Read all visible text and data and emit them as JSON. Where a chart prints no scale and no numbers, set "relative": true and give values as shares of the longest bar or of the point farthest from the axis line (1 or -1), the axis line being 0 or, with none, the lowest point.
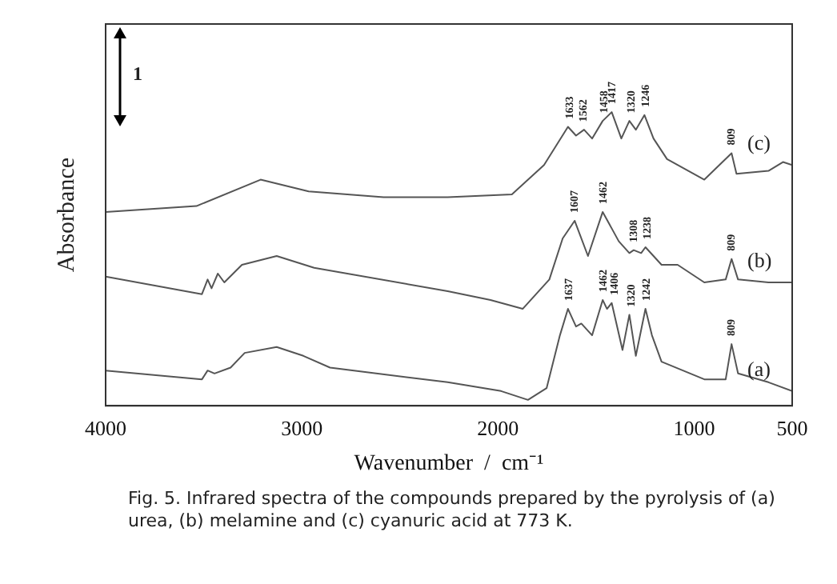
{
  "chart_data": {
    "type": "line",
    "relative": true,
    "xlabel": "Wavenumber  /  cm⁻¹",
    "ylabel": "Absorbance",
    "xlim": [
      4000,
      500
    ],
    "xticks": [
      4000,
      3000,
      2000,
      1000,
      500
    ],
    "grid": false,
    "legend": false,
    "marker": "none",
    "line_style": "solid",
    "tick_labels": "x",
    "series": [
      {
        "name": "(c)",
        "color": "#555555",
        "x": [
          4000,
          3537,
          3210,
          2965,
          2583,
          2256,
          1929,
          1765,
          1643,
          1602,
          1561,
          1520,
          1466,
          1420,
          1371,
          1330,
          1297,
          1253,
          1207,
          1138,
          948,
          809,
          784,
          621,
          547,
          500
        ],
        "values": [
          0.66,
          0.68,
          0.77,
          0.73,
          0.71,
          0.71,
          0.72,
          0.82,
          0.95,
          0.92,
          0.94,
          0.91,
          0.97,
          1.0,
          0.91,
          0.97,
          0.94,
          0.99,
          0.91,
          0.84,
          0.77,
          0.86,
          0.79,
          0.8,
          0.83,
          0.82
        ]
      },
      {
        "name": "(b)",
        "color": "#555555",
        "x": [
          4000,
          3509,
          3480,
          3460,
          3428,
          3395,
          3305,
          3128,
          2937,
          2256,
          2038,
          1874,
          1738,
          1670,
          1609,
          1541,
          1466,
          1384,
          1330,
          1308,
          1270,
          1248,
          1166,
          1084,
          948,
          839,
          809,
          776,
          621,
          500
        ],
        "values": [
          0.44,
          0.38,
          0.43,
          0.4,
          0.45,
          0.42,
          0.48,
          0.51,
          0.47,
          0.39,
          0.36,
          0.33,
          0.43,
          0.57,
          0.63,
          0.51,
          0.66,
          0.56,
          0.52,
          0.53,
          0.52,
          0.54,
          0.48,
          0.48,
          0.42,
          0.43,
          0.5,
          0.43,
          0.42,
          0.42
        ]
      },
      {
        "name": "(a)",
        "color": "#555555",
        "x": [
          4000,
          3509,
          3480,
          3445,
          3363,
          3291,
          3128,
          2992,
          2856,
          2256,
          1984,
          1847,
          1752,
          1684,
          1643,
          1602,
          1575,
          1520,
          1466,
          1444,
          1420,
          1365,
          1330,
          1297,
          1248,
          1215,
          1166,
          948,
          839,
          809,
          776,
          621,
          500
        ],
        "values": [
          0.12,
          0.09,
          0.12,
          0.11,
          0.13,
          0.18,
          0.2,
          0.17,
          0.13,
          0.08,
          0.05,
          0.02,
          0.06,
          0.24,
          0.33,
          0.27,
          0.28,
          0.24,
          0.36,
          0.33,
          0.35,
          0.19,
          0.31,
          0.17,
          0.33,
          0.24,
          0.15,
          0.09,
          0.09,
          0.21,
          0.11,
          0.08,
          0.05
        ]
      }
    ],
    "annotations": [
      "1",
      {
        "text": "1633",
        "x": 1633,
        "y": 0.95
      },
      {
        "text": "1562",
        "x": 1562,
        "y": 0.94
      },
      {
        "text": "1458",
        "x": 1458,
        "y": 0.97
      },
      {
        "text": "1417",
        "x": 1417,
        "y": 1.0
      },
      {
        "text": "1320",
        "x": 1320,
        "y": 0.97
      },
      {
        "text": "1246",
        "x": 1246,
        "y": 0.99
      },
      {
        "text": "809",
        "x": 809,
        "y": 0.86
      },
      {
        "text": "1607",
        "x": 1607,
        "y": 0.63
      },
      {
        "text": "1462",
        "x": 1462,
        "y": 0.66
      },
      {
        "text": "1308",
        "x": 1308,
        "y": 0.53
      },
      {
        "text": "1238",
        "x": 1238,
        "y": 0.54
      },
      {
        "text": "809",
        "x": 809,
        "y": 0.5
      },
      {
        "text": "1637",
        "x": 1637,
        "y": 0.33
      },
      {
        "text": "1462",
        "x": 1462,
        "y": 0.36
      },
      {
        "text": "1406",
        "x": 1406,
        "y": 0.35
      },
      {
        "text": "1320",
        "x": 1320,
        "y": 0.31
      },
      {
        "text": "1242",
        "x": 1242,
        "y": 0.33
      },
      {
        "text": "809",
        "x": 809,
        "y": 0.21
      },
      "Fig. 5.  Infrared spectra of the compounds prepared by the pyrolysis of (a) urea, (b) melamine and (c) cyanuric acid at 773 K."
    ]
  }
}
